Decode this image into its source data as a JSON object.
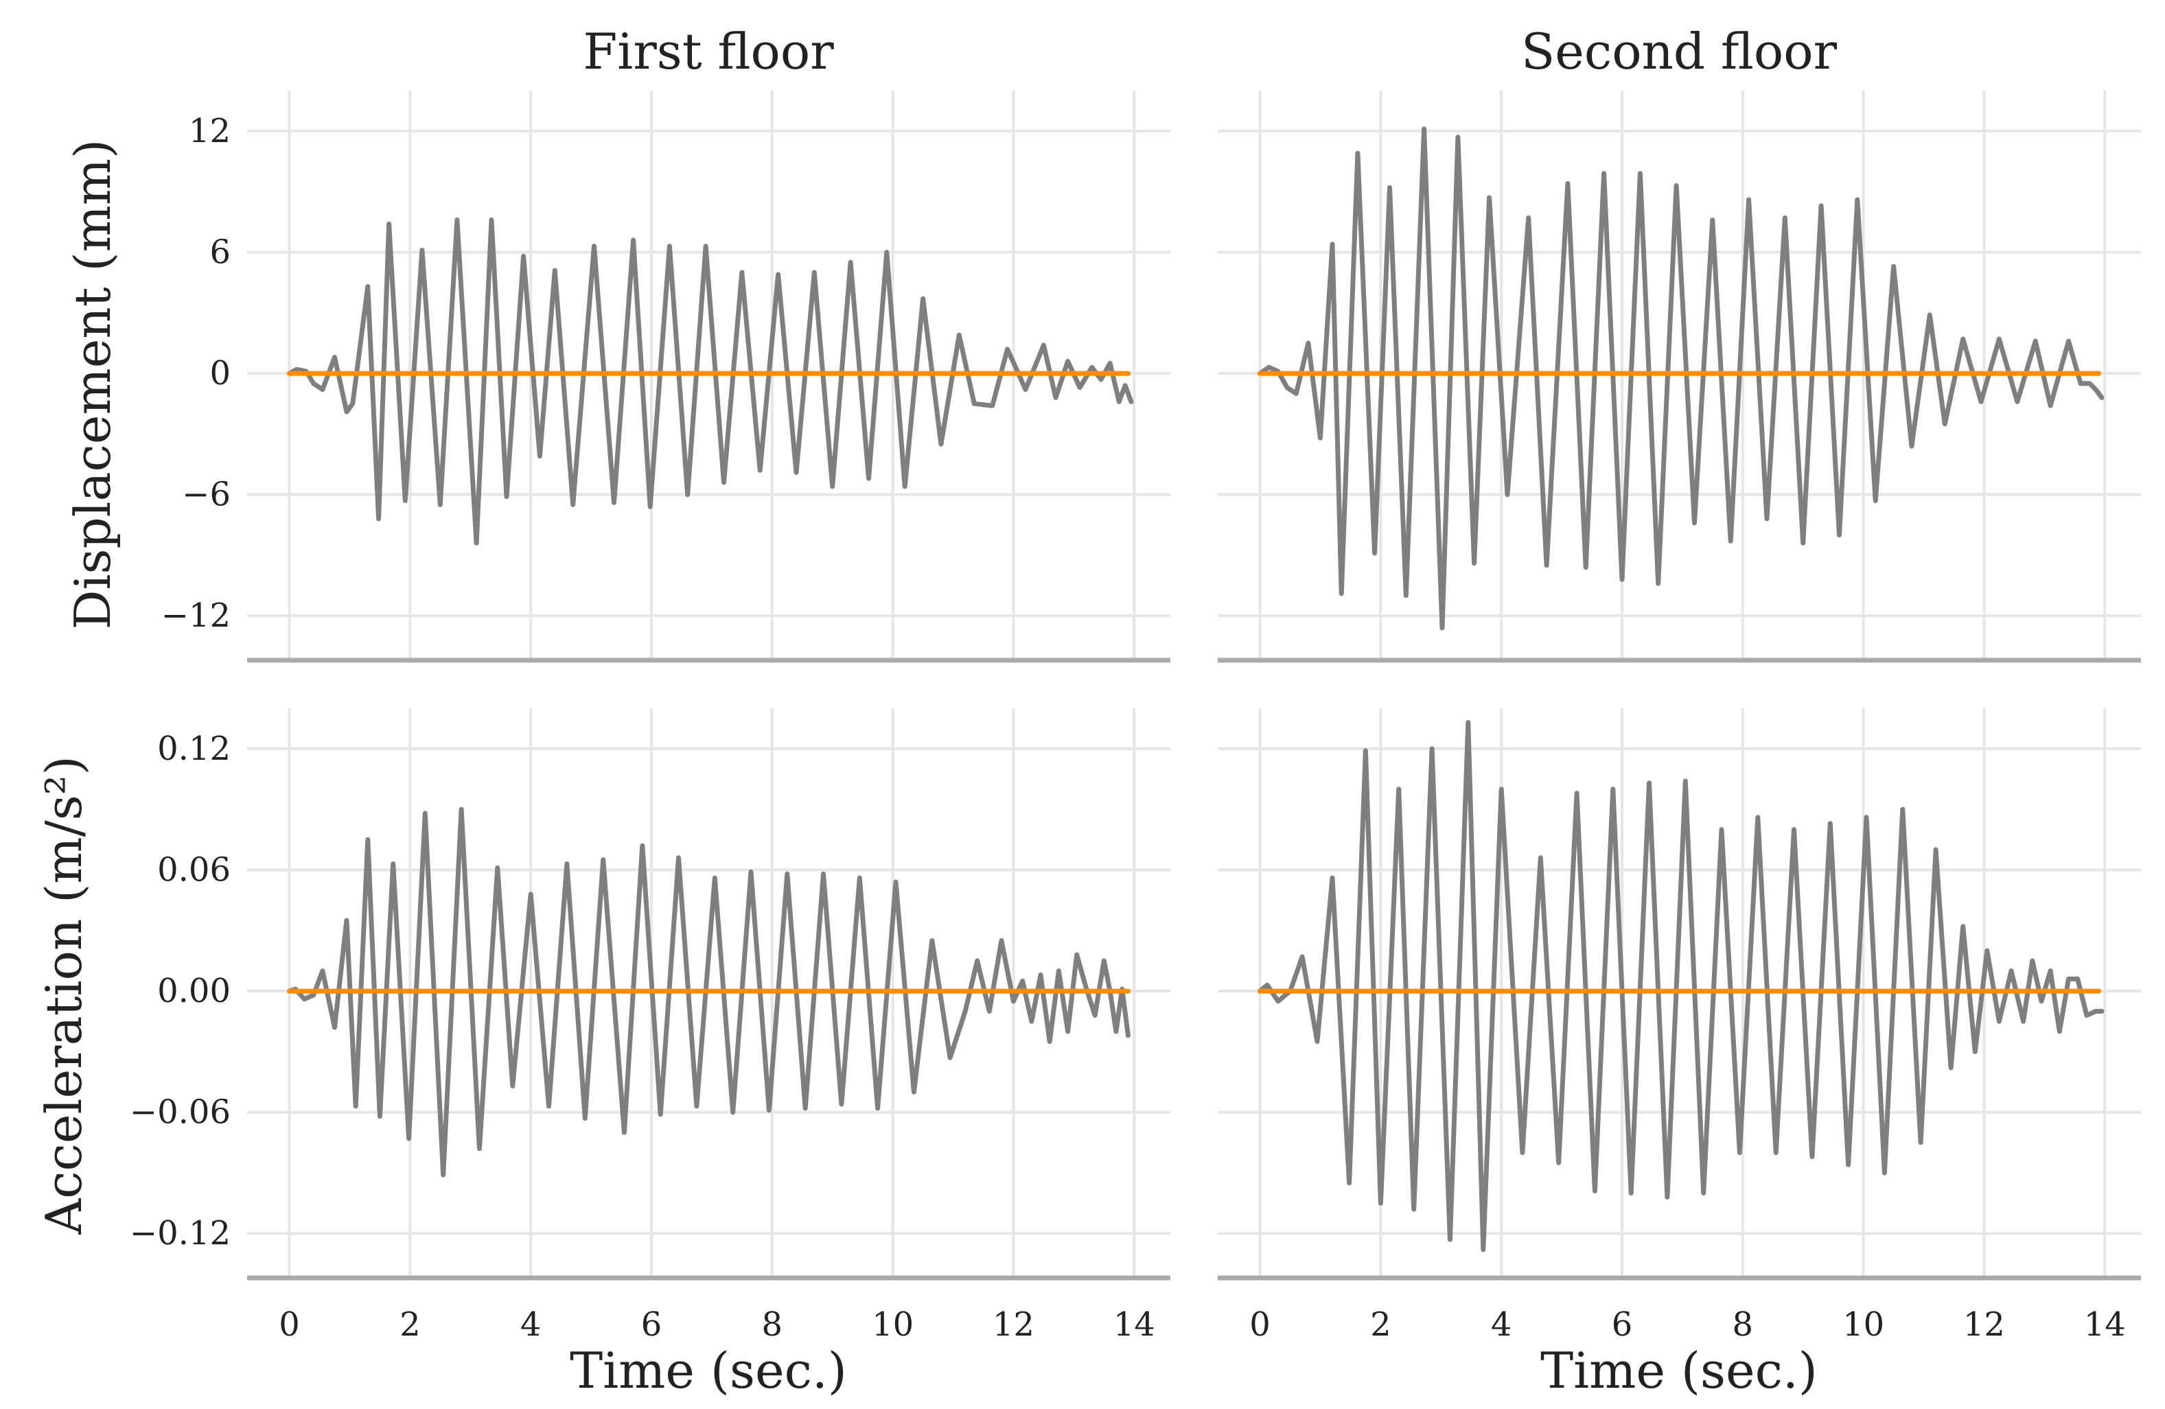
{
  "figure": {
    "col_titles": [
      "First floor",
      "Second floor"
    ],
    "row_ylabels": [
      "Displacement (mm)",
      "Acceleration (m/s²)"
    ],
    "xlabel": "Time (sec.)"
  },
  "chart_data": [
    {
      "type": "line",
      "name": "displacement-first-floor",
      "title": "First floor",
      "xlabel": "",
      "ylabel": "Displacement (mm)",
      "xlim": [
        -0.7,
        14.6
      ],
      "ylim": [
        -14.2,
        14
      ],
      "xticks": [
        0,
        2,
        4,
        6,
        8,
        10,
        12,
        14
      ],
      "yticks": [
        12,
        6,
        0,
        -6,
        -12
      ],
      "ytick_labels": [
        "12",
        "6",
        "0",
        "−6",
        "−12"
      ],
      "grid": true,
      "series": [
        {
          "name": "response",
          "color": "#7f7f7f",
          "x": [
            0,
            0.12,
            0.28,
            0.4,
            0.55,
            0.75,
            0.95,
            1.05,
            1.3,
            1.48,
            1.65,
            1.92,
            2.2,
            2.5,
            2.78,
            3.1,
            3.35,
            3.6,
            3.88,
            4.15,
            4.4,
            4.7,
            5.05,
            5.38,
            5.7,
            5.98,
            6.3,
            6.6,
            6.9,
            7.2,
            7.5,
            7.8,
            8.1,
            8.4,
            8.7,
            9.0,
            9.3,
            9.6,
            9.9,
            10.2,
            10.5,
            10.8,
            11.1,
            11.35,
            11.65,
            11.9,
            12.2,
            12.5,
            12.7,
            12.9,
            13.1,
            13.3,
            13.45,
            13.6,
            13.75,
            13.85,
            13.95
          ],
          "y": [
            0,
            0.2,
            0.1,
            -0.5,
            -0.8,
            0.8,
            -1.9,
            -1.5,
            4.3,
            -7.2,
            7.4,
            -6.3,
            6.1,
            -6.5,
            7.6,
            -8.4,
            7.6,
            -6.1,
            5.8,
            -4.1,
            5.1,
            -6.5,
            6.3,
            -6.4,
            6.6,
            -6.6,
            6.3,
            -6.0,
            6.3,
            -5.4,
            5.0,
            -4.8,
            4.9,
            -4.9,
            5.0,
            -5.6,
            5.5,
            -5.2,
            6.0,
            -5.6,
            3.7,
            -3.5,
            1.9,
            -1.5,
            -1.6,
            1.2,
            -0.8,
            1.4,
            -1.2,
            0.6,
            -0.7,
            0.3,
            -0.3,
            0.5,
            -1.4,
            -0.6,
            -1.4
          ]
        },
        {
          "name": "baseline",
          "color": "#ff8c00",
          "x": [
            0,
            13.9
          ],
          "y": [
            0,
            0
          ]
        }
      ]
    },
    {
      "type": "line",
      "name": "displacement-second-floor",
      "title": "Second floor",
      "xlabel": "",
      "ylabel": "",
      "xlim": [
        -0.7,
        14.6
      ],
      "ylim": [
        -14.2,
        14
      ],
      "xticks": [
        0,
        2,
        4,
        6,
        8,
        10,
        12,
        14
      ],
      "yticks": [
        12,
        6,
        0,
        -6,
        -12
      ],
      "grid": true,
      "series": [
        {
          "name": "response",
          "color": "#7f7f7f",
          "x": [
            0,
            0.15,
            0.3,
            0.45,
            0.6,
            0.8,
            1.0,
            1.2,
            1.35,
            1.62,
            1.9,
            2.15,
            2.42,
            2.72,
            3.02,
            3.28,
            3.55,
            3.8,
            4.1,
            4.45,
            4.75,
            5.1,
            5.4,
            5.7,
            6.0,
            6.3,
            6.6,
            6.9,
            7.2,
            7.5,
            7.8,
            8.1,
            8.4,
            8.7,
            9.0,
            9.3,
            9.6,
            9.9,
            10.2,
            10.5,
            10.8,
            11.1,
            11.35,
            11.65,
            11.95,
            12.25,
            12.55,
            12.85,
            13.1,
            13.4,
            13.6,
            13.75,
            13.85,
            13.95
          ],
          "y": [
            0,
            0.3,
            0.1,
            -0.7,
            -1.0,
            1.5,
            -3.2,
            6.4,
            -10.9,
            10.9,
            -8.9,
            9.2,
            -11.0,
            12.1,
            -12.6,
            11.7,
            -9.4,
            8.7,
            -6.0,
            7.7,
            -9.5,
            9.4,
            -9.6,
            9.9,
            -10.2,
            9.9,
            -10.4,
            9.3,
            -7.4,
            7.6,
            -8.3,
            8.6,
            -7.2,
            7.7,
            -8.4,
            8.3,
            -8.0,
            8.6,
            -6.3,
            5.3,
            -3.6,
            2.9,
            -2.5,
            1.7,
            -1.4,
            1.7,
            -1.4,
            1.6,
            -1.6,
            1.6,
            -0.5,
            -0.5,
            -0.8,
            -1.2
          ]
        },
        {
          "name": "baseline",
          "color": "#ff8c00",
          "x": [
            0,
            13.9
          ],
          "y": [
            0,
            0
          ]
        }
      ]
    },
    {
      "type": "line",
      "name": "acceleration-first-floor",
      "title": "",
      "xlabel": "Time (sec.)",
      "ylabel": "Acceleration (m/s²)",
      "xlim": [
        -0.7,
        14.6
      ],
      "ylim": [
        -0.142,
        0.14
      ],
      "xticks": [
        0,
        2,
        4,
        6,
        8,
        10,
        12,
        14
      ],
      "xtick_labels": [
        "0",
        "2",
        "4",
        "6",
        "8",
        "10",
        "12",
        "14"
      ],
      "yticks": [
        0.12,
        0.06,
        0.0,
        -0.06,
        -0.12
      ],
      "ytick_labels": [
        "0.12",
        "0.06",
        "0.00",
        "−0.06",
        "−0.12"
      ],
      "grid": true,
      "series": [
        {
          "name": "response",
          "color": "#7f7f7f",
          "x": [
            0,
            0.1,
            0.25,
            0.4,
            0.55,
            0.75,
            0.95,
            1.1,
            1.3,
            1.5,
            1.72,
            1.98,
            2.25,
            2.55,
            2.85,
            3.15,
            3.45,
            3.7,
            4.0,
            4.3,
            4.6,
            4.9,
            5.2,
            5.55,
            5.85,
            6.15,
            6.45,
            6.75,
            7.05,
            7.35,
            7.65,
            7.95,
            8.25,
            8.55,
            8.85,
            9.15,
            9.45,
            9.75,
            10.05,
            10.35,
            10.65,
            10.95,
            11.2,
            11.4,
            11.6,
            11.8,
            12.0,
            12.15,
            12.3,
            12.45,
            12.6,
            12.75,
            12.9,
            13.05,
            13.2,
            13.35,
            13.5,
            13.6,
            13.7,
            13.8,
            13.9
          ],
          "y": [
            0,
            0.001,
            -0.004,
            -0.002,
            0.01,
            -0.018,
            0.035,
            -0.057,
            0.075,
            -0.062,
            0.063,
            -0.073,
            0.088,
            -0.091,
            0.09,
            -0.078,
            0.061,
            -0.047,
            0.048,
            -0.057,
            0.063,
            -0.063,
            0.065,
            -0.07,
            0.072,
            -0.061,
            0.066,
            -0.057,
            0.056,
            -0.06,
            0.059,
            -0.059,
            0.058,
            -0.058,
            0.058,
            -0.056,
            0.056,
            -0.058,
            0.054,
            -0.05,
            0.025,
            -0.033,
            -0.01,
            0.015,
            -0.01,
            0.025,
            -0.005,
            0.005,
            -0.015,
            0.008,
            -0.025,
            0.01,
            -0.02,
            0.018,
            0.002,
            -0.012,
            0.015,
            0.0,
            -0.02,
            0.001,
            -0.022
          ]
        },
        {
          "name": "baseline",
          "color": "#ff8c00",
          "x": [
            0,
            13.9
          ],
          "y": [
            0,
            0
          ]
        }
      ]
    },
    {
      "type": "line",
      "name": "acceleration-second-floor",
      "title": "",
      "xlabel": "Time (sec.)",
      "ylabel": "",
      "xlim": [
        -0.7,
        14.6
      ],
      "ylim": [
        -0.142,
        0.14
      ],
      "xticks": [
        0,
        2,
        4,
        6,
        8,
        10,
        12,
        14
      ],
      "xtick_labels": [
        "0",
        "2",
        "4",
        "6",
        "8",
        "10",
        "12",
        "14"
      ],
      "yticks": [
        0.12,
        0.06,
        0.0,
        -0.06,
        -0.12
      ],
      "grid": true,
      "series": [
        {
          "name": "response",
          "color": "#7f7f7f",
          "x": [
            0,
            0.12,
            0.3,
            0.5,
            0.7,
            0.95,
            1.2,
            1.48,
            1.75,
            2.0,
            2.3,
            2.55,
            2.85,
            3.15,
            3.45,
            3.7,
            4.0,
            4.35,
            4.65,
            4.95,
            5.25,
            5.55,
            5.85,
            6.15,
            6.45,
            6.75,
            7.05,
            7.35,
            7.65,
            7.95,
            8.25,
            8.55,
            8.85,
            9.15,
            9.45,
            9.75,
            10.05,
            10.35,
            10.65,
            10.95,
            11.2,
            11.45,
            11.65,
            11.85,
            12.05,
            12.25,
            12.45,
            12.65,
            12.8,
            12.95,
            13.1,
            13.25,
            13.4,
            13.55,
            13.7,
            13.85,
            13.95
          ],
          "y": [
            0,
            0.003,
            -0.005,
            0.0,
            0.017,
            -0.025,
            0.056,
            -0.095,
            0.119,
            -0.105,
            0.1,
            -0.108,
            0.12,
            -0.123,
            0.133,
            -0.128,
            0.1,
            -0.08,
            0.066,
            -0.085,
            0.098,
            -0.099,
            0.1,
            -0.1,
            0.103,
            -0.102,
            0.104,
            -0.1,
            0.08,
            -0.08,
            0.086,
            -0.08,
            0.08,
            -0.082,
            0.083,
            -0.086,
            0.086,
            -0.09,
            0.09,
            -0.075,
            0.07,
            -0.038,
            0.032,
            -0.03,
            0.02,
            -0.015,
            0.01,
            -0.015,
            0.015,
            -0.005,
            0.01,
            -0.02,
            0.006,
            0.006,
            -0.012,
            -0.01,
            -0.01
          ]
        },
        {
          "name": "baseline",
          "color": "#ff8c00",
          "x": [
            0,
            13.9
          ],
          "y": [
            0,
            0
          ]
        }
      ]
    }
  ]
}
